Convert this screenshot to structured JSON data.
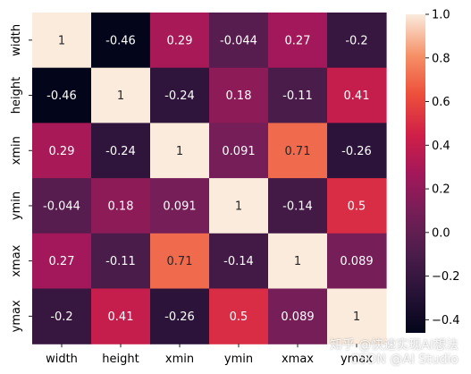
{
  "chart_data": {
    "type": "heatmap",
    "title": "",
    "row_labels": [
      "width",
      "height",
      "xmin",
      "ymin",
      "xmax",
      "ymax"
    ],
    "col_labels": [
      "width",
      "height",
      "xmin",
      "ymin",
      "xmax",
      "ymax"
    ],
    "values": [
      [
        1,
        -0.46,
        0.29,
        -0.044,
        0.27,
        -0.2
      ],
      [
        -0.46,
        1,
        -0.24,
        0.18,
        -0.11,
        0.41
      ],
      [
        0.29,
        -0.24,
        1,
        0.091,
        0.71,
        -0.26
      ],
      [
        -0.044,
        0.18,
        0.091,
        1,
        -0.14,
        0.5
      ],
      [
        0.27,
        -0.11,
        0.71,
        -0.14,
        1,
        0.089
      ],
      [
        -0.2,
        0.41,
        -0.26,
        0.5,
        0.089,
        1
      ]
    ],
    "annotations": [
      [
        "1",
        "-0.46",
        "0.29",
        "-0.044",
        "0.27",
        "-0.2"
      ],
      [
        "-0.46",
        "1",
        "-0.24",
        "0.18",
        "-0.11",
        "0.41"
      ],
      [
        "0.29",
        "-0.24",
        "1",
        "0.091",
        "0.71",
        "-0.26"
      ],
      [
        "-0.044",
        "0.18",
        "0.091",
        "1",
        "-0.14",
        "0.5"
      ],
      [
        "0.27",
        "-0.11",
        "0.71",
        "-0.14",
        "1",
        "0.089"
      ],
      [
        "-0.2",
        "0.41",
        "-0.26",
        "0.5",
        "0.089",
        "1"
      ]
    ],
    "colorbar": {
      "min": -0.46,
      "max": 1,
      "ticks": [
        1.0,
        0.8,
        0.6,
        0.4,
        0.2,
        0.0,
        -0.2,
        -0.4
      ],
      "tick_labels": [
        "1.0",
        "0.8",
        "0.6",
        "0.4",
        "0.2",
        "0.0",
        "−0.2",
        "−0.4"
      ]
    },
    "colormap": "rocket"
  },
  "watermark": {
    "line1": "知乎 @快速实现AI想法",
    "line2": "CSDN @AI Studio"
  }
}
